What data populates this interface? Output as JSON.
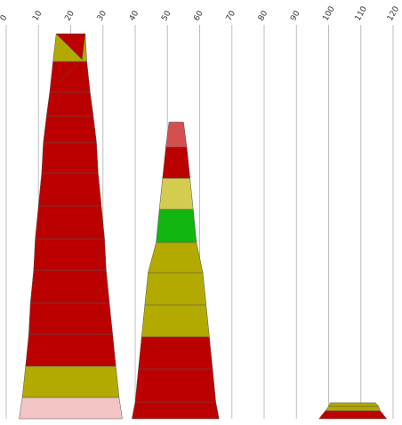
{
  "chart_data": {
    "type": "stacked-tapered-bar",
    "title": "",
    "xlabel": "",
    "ylabel": "",
    "x_axis": {
      "range": [
        0,
        120
      ],
      "ticks": [
        "0",
        "10",
        "20",
        "30",
        "40",
        "50",
        "60",
        "70",
        "80",
        "90",
        "100",
        "110",
        "120"
      ],
      "tick_position": "top",
      "tick_rotation": "diagonal",
      "grid": true
    },
    "legend": "none",
    "colors": {
      "red": "#bb0000",
      "olive": "#b3aa00",
      "pink": "#f2c4c4",
      "light_red": "#d45050",
      "yellow": "#d4cc50",
      "green": "#11b611"
    },
    "stacks": [
      {
        "segments": [
          {
            "color": "pink",
            "x_left_bottom": 4,
            "x_right_bottom": 36,
            "x_left_top": 5,
            "x_right_top": 35
          },
          {
            "color": "olive",
            "x_left_top": 6,
            "x_right_top": 34
          },
          {
            "color": "red",
            "x_left_top": 7,
            "x_right_top": 33
          },
          {
            "color": "red",
            "x_left_top": 7.5,
            "x_right_top": 32
          },
          {
            "color": "red",
            "x_left_top": 8.5,
            "x_right_top": 31
          },
          {
            "color": "red",
            "x_left_top": 9,
            "x_right_top": 30.5
          },
          {
            "color": "red",
            "x_left_top": 10,
            "x_right_top": 29.5
          },
          {
            "color": "red",
            "x_left_top": 11,
            "x_right_top": 28.5
          },
          {
            "color": "red",
            "x_left_top": 11.5,
            "x_right_top": 28
          },
          {
            "color": "red",
            "x_left_top": 12.5,
            "x_right_top": 27
          },
          {
            "color": "red",
            "x_left_top": 13.5,
            "x_right_top": 26
          },
          {
            "color": "red",
            "x_left_top": 14.5,
            "x_right_top": 25
          },
          {
            "color": "olive",
            "x_left_top": 15.5,
            "x_right_top": 24.5
          },
          {
            "color": "red",
            "x_left_top": 16.5,
            "x_right_top": 23.5
          },
          {
            "color": "olive",
            "x_left_top": 17.5,
            "x_right_top": 22.5
          }
        ]
      },
      {
        "segments": [
          {
            "color": "red",
            "x_left_bottom": 39,
            "x_right_bottom": 66,
            "x_left_top": 40,
            "x_right_top": 65
          },
          {
            "color": "red",
            "x_left_top": 41,
            "x_right_top": 64
          },
          {
            "color": "red",
            "x_left_top": 42,
            "x_right_top": 63
          },
          {
            "color": "olive",
            "x_left_top": 43,
            "x_right_top": 62
          },
          {
            "color": "olive",
            "x_left_top": 44,
            "x_right_top": 61
          },
          {
            "color": "olive",
            "x_left_top": 46.5,
            "x_right_top": 59
          },
          {
            "color": "green",
            "x_left_top": 47.5,
            "x_right_top": 58
          },
          {
            "color": "yellow",
            "x_left_top": 48.5,
            "x_right_top": 57
          },
          {
            "color": "red",
            "x_left_top": 49.5,
            "x_right_top": 56
          },
          {
            "color": "light_red",
            "x_left_top": 50.5,
            "x_right_top": 55
          }
        ]
      },
      {
        "segments": [
          {
            "color": "red",
            "x_left_bottom": 97,
            "x_right_bottom": 118,
            "x_left_top": 99,
            "x_right_top": 116
          },
          {
            "color": "olive",
            "x_left_top": 100,
            "x_right_top": 115.5
          },
          {
            "color": "olive",
            "x_left_top": 100.5,
            "x_right_top": 114.5
          }
        ]
      }
    ]
  }
}
